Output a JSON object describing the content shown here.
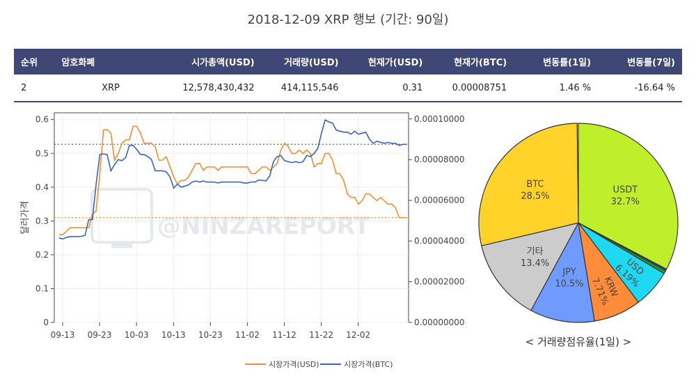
{
  "title": "2018-12-09 XRP 행보 (기간: 90일)",
  "table": {
    "headers": [
      "순위",
      "암호화폐",
      "시가총액(USD)",
      "거래량(USD)",
      "현재가(USD)",
      "현재가(BTC)",
      "변동률(1일)",
      "변동률(7일)"
    ],
    "row": [
      "2",
      "XRP",
      "12,578,430,432",
      "414,115,546",
      "0.31",
      "0.00008751",
      "1.46 %",
      "-16.64 %"
    ]
  },
  "colors": {
    "usd": "#f28e2b",
    "btc": "#3a62c4",
    "header": "#3f4775"
  },
  "chart_data": [
    {
      "type": "line",
      "x_ticks": [
        "09-13",
        "09-23",
        "10-03",
        "10-13",
        "10-23",
        "11-02",
        "11-12",
        "11-22",
        "12-02"
      ],
      "ylabel": "달러가격",
      "ylim": [
        0,
        0.62
      ],
      "y_ticks": [
        "0",
        "0.1",
        "0.2",
        "0.3",
        "0.4",
        "0.5",
        "0.6"
      ],
      "y2lim": [
        0,
        0.000103
      ],
      "y2_ticks": [
        "0.00000000",
        "0.00002000",
        "0.00004000",
        "0.00006000",
        "0.00008000",
        "0.00010000"
      ],
      "watermark": "@NINZAREPORT",
      "series": [
        {
          "name": "시장가격(USD)",
          "axis": "left",
          "ref_line": 0.31,
          "values": [
            0.26,
            0.26,
            0.27,
            0.28,
            0.28,
            0.28,
            0.28,
            0.28,
            0.28,
            0.32,
            0.33,
            0.44,
            0.57,
            0.57,
            0.56,
            0.48,
            0.5,
            0.53,
            0.54,
            0.54,
            0.58,
            0.58,
            0.56,
            0.53,
            0.53,
            0.53,
            0.52,
            0.48,
            0.48,
            0.49,
            0.46,
            0.43,
            0.41,
            0.42,
            0.42,
            0.43,
            0.45,
            0.47,
            0.47,
            0.45,
            0.46,
            0.46,
            0.46,
            0.45,
            0.46,
            0.46,
            0.46,
            0.46,
            0.46,
            0.46,
            0.46,
            0.46,
            0.44,
            0.44,
            0.45,
            0.46,
            0.46,
            0.45,
            0.46,
            0.47,
            0.51,
            0.53,
            0.52,
            0.5,
            0.5,
            0.51,
            0.5,
            0.51,
            0.5,
            0.46,
            0.47,
            0.47,
            0.5,
            0.5,
            0.48,
            0.44,
            0.44,
            0.42,
            0.38,
            0.37,
            0.37,
            0.35,
            0.36,
            0.38,
            0.38,
            0.37,
            0.36,
            0.37,
            0.36,
            0.35,
            0.35,
            0.34,
            0.31,
            0.31,
            0.31
          ]
        },
        {
          "name": "시장가격(BTC)",
          "axis": "right",
          "ref_line": 8.751e-05,
          "values": [
            4.15e-05,
            4.1e-05,
            4.18e-05,
            4.22e-05,
            4.22e-05,
            4.22e-05,
            4.23e-05,
            4.28e-05,
            5.05e-05,
            5.05e-05,
            6.8e-05,
            8.25e-05,
            8.28e-05,
            8.25e-05,
            7.45e-05,
            7.75e-05,
            8e-05,
            7.95e-05,
            8.1e-05,
            8.7e-05,
            8.7e-05,
            8.5e-05,
            8.25e-05,
            8.25e-05,
            8.15e-05,
            8e-05,
            7.45e-05,
            7.45e-05,
            7.45e-05,
            7.4e-05,
            7.15e-05,
            6.6e-05,
            6.8e-05,
            6.65e-05,
            6.7e-05,
            6.75e-05,
            6.9e-05,
            6.95e-05,
            6.9e-05,
            6.95e-05,
            6.9e-05,
            6.9e-05,
            6.9e-05,
            6.85e-05,
            6.9e-05,
            6.9e-05,
            6.9e-05,
            6.9e-05,
            6.9e-05,
            6.9e-05,
            6.85e-05,
            6.85e-05,
            6.9e-05,
            6.9e-05,
            7e-05,
            6.98e-05,
            6.95e-05,
            7.2e-05,
            7.9e-05,
            8.15e-05,
            8.2e-05,
            7.95e-05,
            7.9e-05,
            7.85e-05,
            7.9e-05,
            7.85e-05,
            7.9e-05,
            8.2e-05,
            8.15e-05,
            8.3e-05,
            8.55e-05,
            9.3e-05,
            9.95e-05,
            9.85e-05,
            9.8e-05,
            9.45e-05,
            9.4e-05,
            9.35e-05,
            9.35e-05,
            9.25e-05,
            9.4e-05,
            9.25e-05,
            9.3e-05,
            9.35e-05,
            9e-05,
            8.8e-05,
            8.9e-05,
            8.85e-05,
            8.8e-05,
            8.85e-05,
            8.8e-05,
            8.8e-05,
            8.7e-05,
            8.75e-05,
            8.75e-05
          ]
        }
      ]
    },
    {
      "type": "pie",
      "caption": "< 거래량점유율(1일) >",
      "slices": [
        {
          "label": "USDT",
          "percent": 32.7,
          "value_text": "32.7%",
          "color": "#bfee2a"
        },
        {
          "label": "",
          "percent": 0.3,
          "value_text": "",
          "color": "#1f4fa3"
        },
        {
          "label": "",
          "percent": 0.5,
          "value_text": "",
          "color": "#2ca02c"
        },
        {
          "label": "USD",
          "percent": 6.19,
          "value_text": "6.19%",
          "color": "#1fd8f2"
        },
        {
          "label": "KRW",
          "percent": 7.71,
          "value_text": "7.71%",
          "color": "#ff8c3a"
        },
        {
          "label": "JPY",
          "percent": 10.5,
          "value_text": "10.5%",
          "color": "#6f9bff"
        },
        {
          "label": "기타",
          "percent": 13.4,
          "value_text": "13.4%",
          "color": "#cccccc"
        },
        {
          "label": "BTC",
          "percent": 28.5,
          "value_text": "28.5%",
          "color": "#ffd32a"
        }
      ]
    }
  ]
}
